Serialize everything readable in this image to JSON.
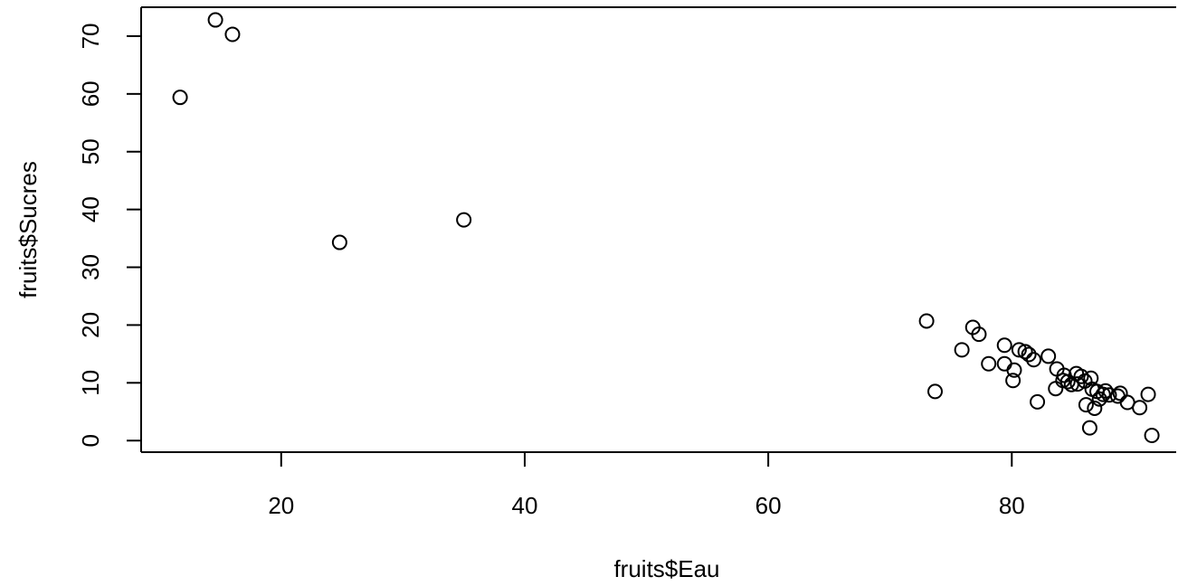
{
  "chart_data": {
    "type": "scatter",
    "title": "",
    "xlabel": "fruits$Eau",
    "ylabel": "fruits$Sucres",
    "xlim": [
      8.5,
      93.5
    ],
    "ylim": [
      -2,
      75
    ],
    "xticks": [
      20,
      40,
      60,
      80
    ],
    "yticks": [
      0,
      10,
      20,
      30,
      40,
      50,
      60,
      70
    ],
    "grid": false,
    "marker": "open-circle",
    "colors": {
      "points": "#000000",
      "axes": "#000000",
      "background": "#ffffff"
    },
    "points": [
      {
        "x": 11.7,
        "y": 59.4
      },
      {
        "x": 14.6,
        "y": 72.8
      },
      {
        "x": 16.0,
        "y": 70.3
      },
      {
        "x": 24.8,
        "y": 34.3
      },
      {
        "x": 35.0,
        "y": 38.2
      },
      {
        "x": 73.0,
        "y": 20.7
      },
      {
        "x": 73.7,
        "y": 8.5
      },
      {
        "x": 75.9,
        "y": 15.7
      },
      {
        "x": 76.8,
        "y": 19.6
      },
      {
        "x": 77.3,
        "y": 18.4
      },
      {
        "x": 78.1,
        "y": 13.3
      },
      {
        "x": 79.4,
        "y": 16.5
      },
      {
        "x": 79.4,
        "y": 13.3
      },
      {
        "x": 80.1,
        "y": 10.4
      },
      {
        "x": 80.2,
        "y": 12.2
      },
      {
        "x": 80.6,
        "y": 15.7
      },
      {
        "x": 81.1,
        "y": 15.4
      },
      {
        "x": 81.4,
        "y": 14.9
      },
      {
        "x": 81.8,
        "y": 14.0
      },
      {
        "x": 82.1,
        "y": 6.7
      },
      {
        "x": 83.0,
        "y": 14.6
      },
      {
        "x": 83.6,
        "y": 9.0
      },
      {
        "x": 83.7,
        "y": 12.4
      },
      {
        "x": 84.2,
        "y": 10.4
      },
      {
        "x": 84.3,
        "y": 11.3
      },
      {
        "x": 84.6,
        "y": 10.2
      },
      {
        "x": 84.9,
        "y": 9.7
      },
      {
        "x": 85.3,
        "y": 11.6
      },
      {
        "x": 85.4,
        "y": 9.8
      },
      {
        "x": 85.7,
        "y": 11.1
      },
      {
        "x": 86.0,
        "y": 10.3
      },
      {
        "x": 86.1,
        "y": 6.2
      },
      {
        "x": 86.4,
        "y": 2.2
      },
      {
        "x": 86.5,
        "y": 10.8
      },
      {
        "x": 86.6,
        "y": 8.9
      },
      {
        "x": 86.8,
        "y": 5.6
      },
      {
        "x": 87.0,
        "y": 8.5
      },
      {
        "x": 87.2,
        "y": 7.2
      },
      {
        "x": 87.5,
        "y": 8.0
      },
      {
        "x": 87.7,
        "y": 8.6
      },
      {
        "x": 88.0,
        "y": 7.9
      },
      {
        "x": 88.7,
        "y": 7.7
      },
      {
        "x": 88.9,
        "y": 8.2
      },
      {
        "x": 89.5,
        "y": 6.6
      },
      {
        "x": 90.5,
        "y": 5.7
      },
      {
        "x": 91.2,
        "y": 8.0
      },
      {
        "x": 91.5,
        "y": 0.9
      }
    ]
  }
}
